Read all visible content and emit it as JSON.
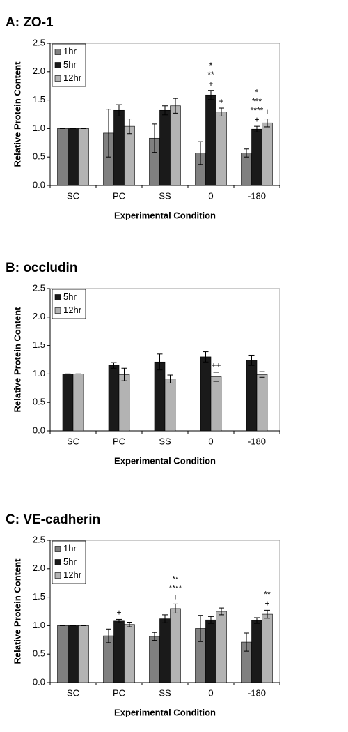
{
  "chart_data": [
    {
      "type": "bar",
      "title": "A: ZO-1",
      "xlabel": "Experimental Condition",
      "ylabel": "Relative Protein Content",
      "categories": [
        "SC",
        "PC",
        "SS",
        "0",
        "-180"
      ],
      "ylim": [
        0,
        2.5
      ],
      "yticks": [
        {
          "value": 0,
          "label": "0.0"
        },
        0.5,
        {
          "value": 1,
          "label": "1.0"
        },
        1.5,
        {
          "value": 2,
          "label": "2.0"
        },
        2.5
      ],
      "legend": "upper left",
      "series": [
        {
          "name": "1hr",
          "color": "#808080",
          "values": [
            1.0,
            0.92,
            0.83,
            0.57,
            0.57
          ],
          "errors": [
            0,
            0.42,
            0.25,
            0.2,
            0.07
          ],
          "annotations": [
            [],
            [],
            [],
            [],
            []
          ]
        },
        {
          "name": "5hr",
          "color": "#1a1a1a",
          "values": [
            1.0,
            1.32,
            1.32,
            1.59,
            0.99
          ],
          "errors": [
            0,
            0.1,
            0.08,
            0.08,
            0.05
          ],
          "annotations": [
            [],
            [],
            [],
            [
              "*",
              "**",
              "+"
            ],
            [
              "*",
              "***",
              "****",
              "+"
            ]
          ]
        },
        {
          "name": "12hr",
          "color": "#b3b3b3",
          "values": [
            1.0,
            1.04,
            1.4,
            1.29,
            1.1
          ],
          "errors": [
            0,
            0.13,
            0.13,
            0.07,
            0.07
          ],
          "annotations": [
            [],
            [],
            [],
            [
              "+"
            ],
            [
              "+"
            ]
          ]
        }
      ]
    },
    {
      "type": "bar",
      "title": "B: occludin",
      "xlabel": "Experimental Condition",
      "ylabel": "Relative Protein Content",
      "categories": [
        "SC",
        "PC",
        "SS",
        "0",
        "-180"
      ],
      "ylim": [
        0,
        2.5
      ],
      "yticks": [
        {
          "value": 0,
          "label": "0.0"
        },
        0.5,
        {
          "value": 1,
          "label": "1.0"
        },
        1.5,
        {
          "value": 2,
          "label": "2.0"
        },
        2.5
      ],
      "legend": "upper left",
      "series": [
        {
          "name": "5hr",
          "color": "#1a1a1a",
          "values": [
            1.0,
            1.15,
            1.21,
            1.3,
            1.24
          ],
          "errors": [
            0,
            0.05,
            0.14,
            0.09,
            0.09
          ],
          "annotations": [
            [],
            [],
            [],
            [],
            []
          ]
        },
        {
          "name": "12hr",
          "color": "#b3b3b3",
          "values": [
            1.0,
            0.99,
            0.91,
            0.95,
            0.99
          ],
          "errors": [
            0,
            0.11,
            0.07,
            0.08,
            0.05
          ],
          "annotations": [
            [],
            [],
            [],
            [
              "++"
            ],
            []
          ]
        }
      ]
    },
    {
      "type": "bar",
      "title": "C: VE-cadherin",
      "xlabel": "Experimental Condition",
      "ylabel": "Relative Protein Content",
      "categories": [
        "SC",
        "PC",
        "SS",
        "0",
        "-180"
      ],
      "ylim": [
        0,
        2.5
      ],
      "yticks": [
        {
          "value": 0,
          "label": "0.0"
        },
        0.5,
        {
          "value": 1,
          "label": "1.0"
        },
        1.5,
        {
          "value": 2,
          "label": "2.0"
        },
        2.5
      ],
      "legend": "upper left",
      "series": [
        {
          "name": "1hr",
          "color": "#808080",
          "values": [
            1.0,
            0.82,
            0.81,
            0.95,
            0.71
          ],
          "errors": [
            0,
            0.12,
            0.07,
            0.23,
            0.16
          ],
          "annotations": [
            [],
            [],
            [],
            [],
            []
          ]
        },
        {
          "name": "5hr",
          "color": "#1a1a1a",
          "values": [
            1.0,
            1.08,
            1.12,
            1.1,
            1.09
          ],
          "errors": [
            0,
            0.03,
            0.07,
            0.06,
            0.05
          ],
          "annotations": [
            [],
            [
              "+"
            ],
            [],
            [],
            []
          ]
        },
        {
          "name": "12hr",
          "color": "#b3b3b3",
          "values": [
            1.0,
            1.02,
            1.3,
            1.25,
            1.2
          ],
          "errors": [
            0,
            0.04,
            0.08,
            0.06,
            0.07
          ],
          "annotations": [
            [],
            [],
            [
              "**",
              "****",
              "+"
            ],
            [],
            [
              "**",
              "+"
            ]
          ]
        }
      ]
    }
  ]
}
